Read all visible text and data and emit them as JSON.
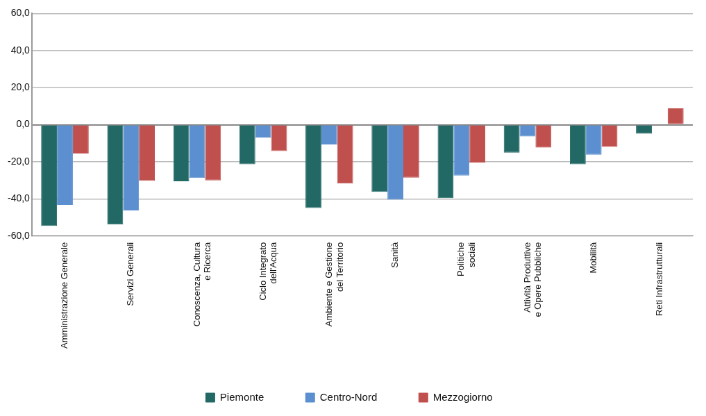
{
  "chart_data": {
    "type": "bar",
    "categories": [
      "Amministrazione Generale",
      "Servizi Generali",
      "Conoscenza, Cultura\ne Ricerca",
      "Ciclo Integrato\ndell'Acqua",
      "Ambiente e Gestione\ndel Territorio",
      "Sanità",
      "Politiche\nsociali",
      "Attività Produttive\ne Opere Pubbliche",
      "Mobilità",
      "Reti Infrastrutturali"
    ],
    "series": [
      {
        "name": "Piemonte",
        "color": "#226864",
        "values": [
          -54.5,
          -53.8,
          -30.5,
          -21.3,
          -44.9,
          -36.2,
          -39.6,
          -15.0,
          -21.3,
          -4.8
        ]
      },
      {
        "name": "Centro-Nord",
        "color": "#5b8fd0",
        "values": [
          -43.2,
          -46.2,
          -28.7,
          -6.9,
          -10.6,
          -40.4,
          -27.4,
          -6.3,
          -16.2,
          null
        ]
      },
      {
        "name": "Mezzogiorno",
        "color": "#c0504d",
        "values": [
          -15.5,
          -30.2,
          -30.0,
          -14.2,
          -31.7,
          -28.5,
          -20.4,
          -12.3,
          -11.9,
          8.8
        ]
      }
    ],
    "ylim": [
      -60,
      60
    ],
    "yticks": [
      {
        "value": -60,
        "label": "-60,0"
      },
      {
        "value": -40,
        "label": "-40,0"
      },
      {
        "value": -20,
        "label": "-20,0"
      },
      {
        "value": 0,
        "label": "0,0"
      },
      {
        "value": 20,
        "label": "20,0"
      },
      {
        "value": 40,
        "label": "40,0"
      },
      {
        "value": 60,
        "label": "60,0"
      }
    ],
    "grid": "y",
    "legend": "bottom"
  }
}
